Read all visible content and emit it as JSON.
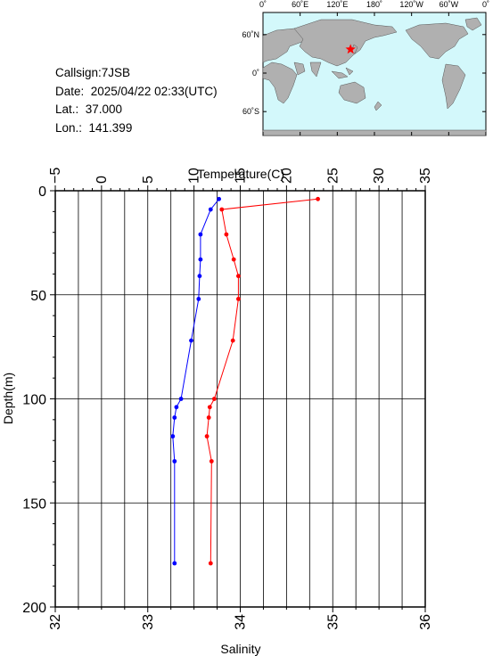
{
  "station": {
    "callsign": "Callsign:7JSB",
    "date": "Date:  2025/04/22 02:33(UTC)",
    "lat": "Lat.:  37.000",
    "lon": "Lon.:  141.399"
  },
  "map": {
    "top_labels": [
      "0˚",
      "60˚E",
      "120˚E",
      "180˚",
      "120˚W",
      "60˚W",
      "0˚"
    ],
    "lat_labels": [
      "60˚N",
      "0˚",
      "60˚S"
    ],
    "ocean_color": "#d3f8fb",
    "land_color": "#b0b0b0",
    "marker_color": "#ff0000",
    "marker": {
      "lon": 141.4,
      "lat": 37.0
    }
  },
  "colors": {
    "temperature": "#ff0000",
    "salinity": "#0000ff"
  },
  "chart_data": {
    "type": "line",
    "title": "",
    "top_axis": {
      "label": "Temperature(C)",
      "range": [
        -5,
        35
      ],
      "ticks": [
        "−5",
        "0",
        "5",
        "10",
        "15",
        "20",
        "25",
        "30",
        "35"
      ]
    },
    "bottom_axis": {
      "label": "Salinity",
      "range": [
        32,
        36
      ],
      "ticks": [
        "32",
        "33",
        "34",
        "35",
        "36"
      ]
    },
    "y_axis": {
      "label": "Depth(m)",
      "range": [
        0,
        200
      ],
      "inverted": true,
      "ticks": [
        "0",
        "50",
        "100",
        "150",
        "200"
      ]
    },
    "grid": true,
    "series": [
      {
        "key": "temperature",
        "axis": "top",
        "depth": [
          4,
          9,
          21,
          33,
          41,
          52,
          72,
          100,
          104,
          109,
          118,
          130,
          179
        ],
        "values": [
          23.4,
          13.0,
          13.5,
          14.3,
          14.8,
          14.8,
          14.2,
          12.2,
          11.7,
          11.6,
          11.4,
          11.9,
          11.8
        ]
      },
      {
        "key": "salinity",
        "axis": "bottom",
        "depth": [
          4,
          9,
          21,
          33,
          41,
          52,
          72,
          100,
          104,
          109,
          118,
          130,
          179
        ],
        "values": [
          33.77,
          33.68,
          33.57,
          33.57,
          33.56,
          33.55,
          33.47,
          33.36,
          33.31,
          33.29,
          33.27,
          33.29,
          33.29
        ]
      }
    ]
  }
}
